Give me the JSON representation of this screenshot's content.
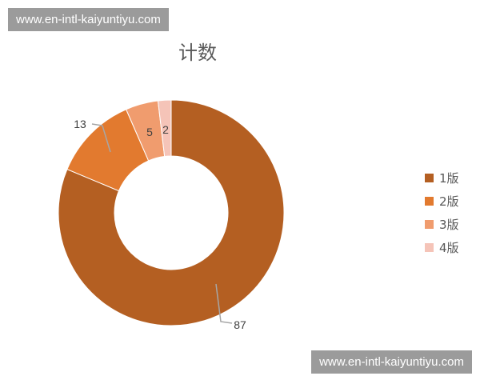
{
  "watermark": "www.en-intl-kaiyuntiyu.com",
  "chart_data": {
    "type": "pie",
    "variant": "donut",
    "title": "计数",
    "categories": [
      "1版",
      "2版",
      "3版",
      "4版"
    ],
    "values": [
      87,
      13,
      5,
      2
    ],
    "colors": [
      "#b45f22",
      "#e27a2f",
      "#f09c6e",
      "#f5c4b8"
    ],
    "legend_position": "right"
  }
}
